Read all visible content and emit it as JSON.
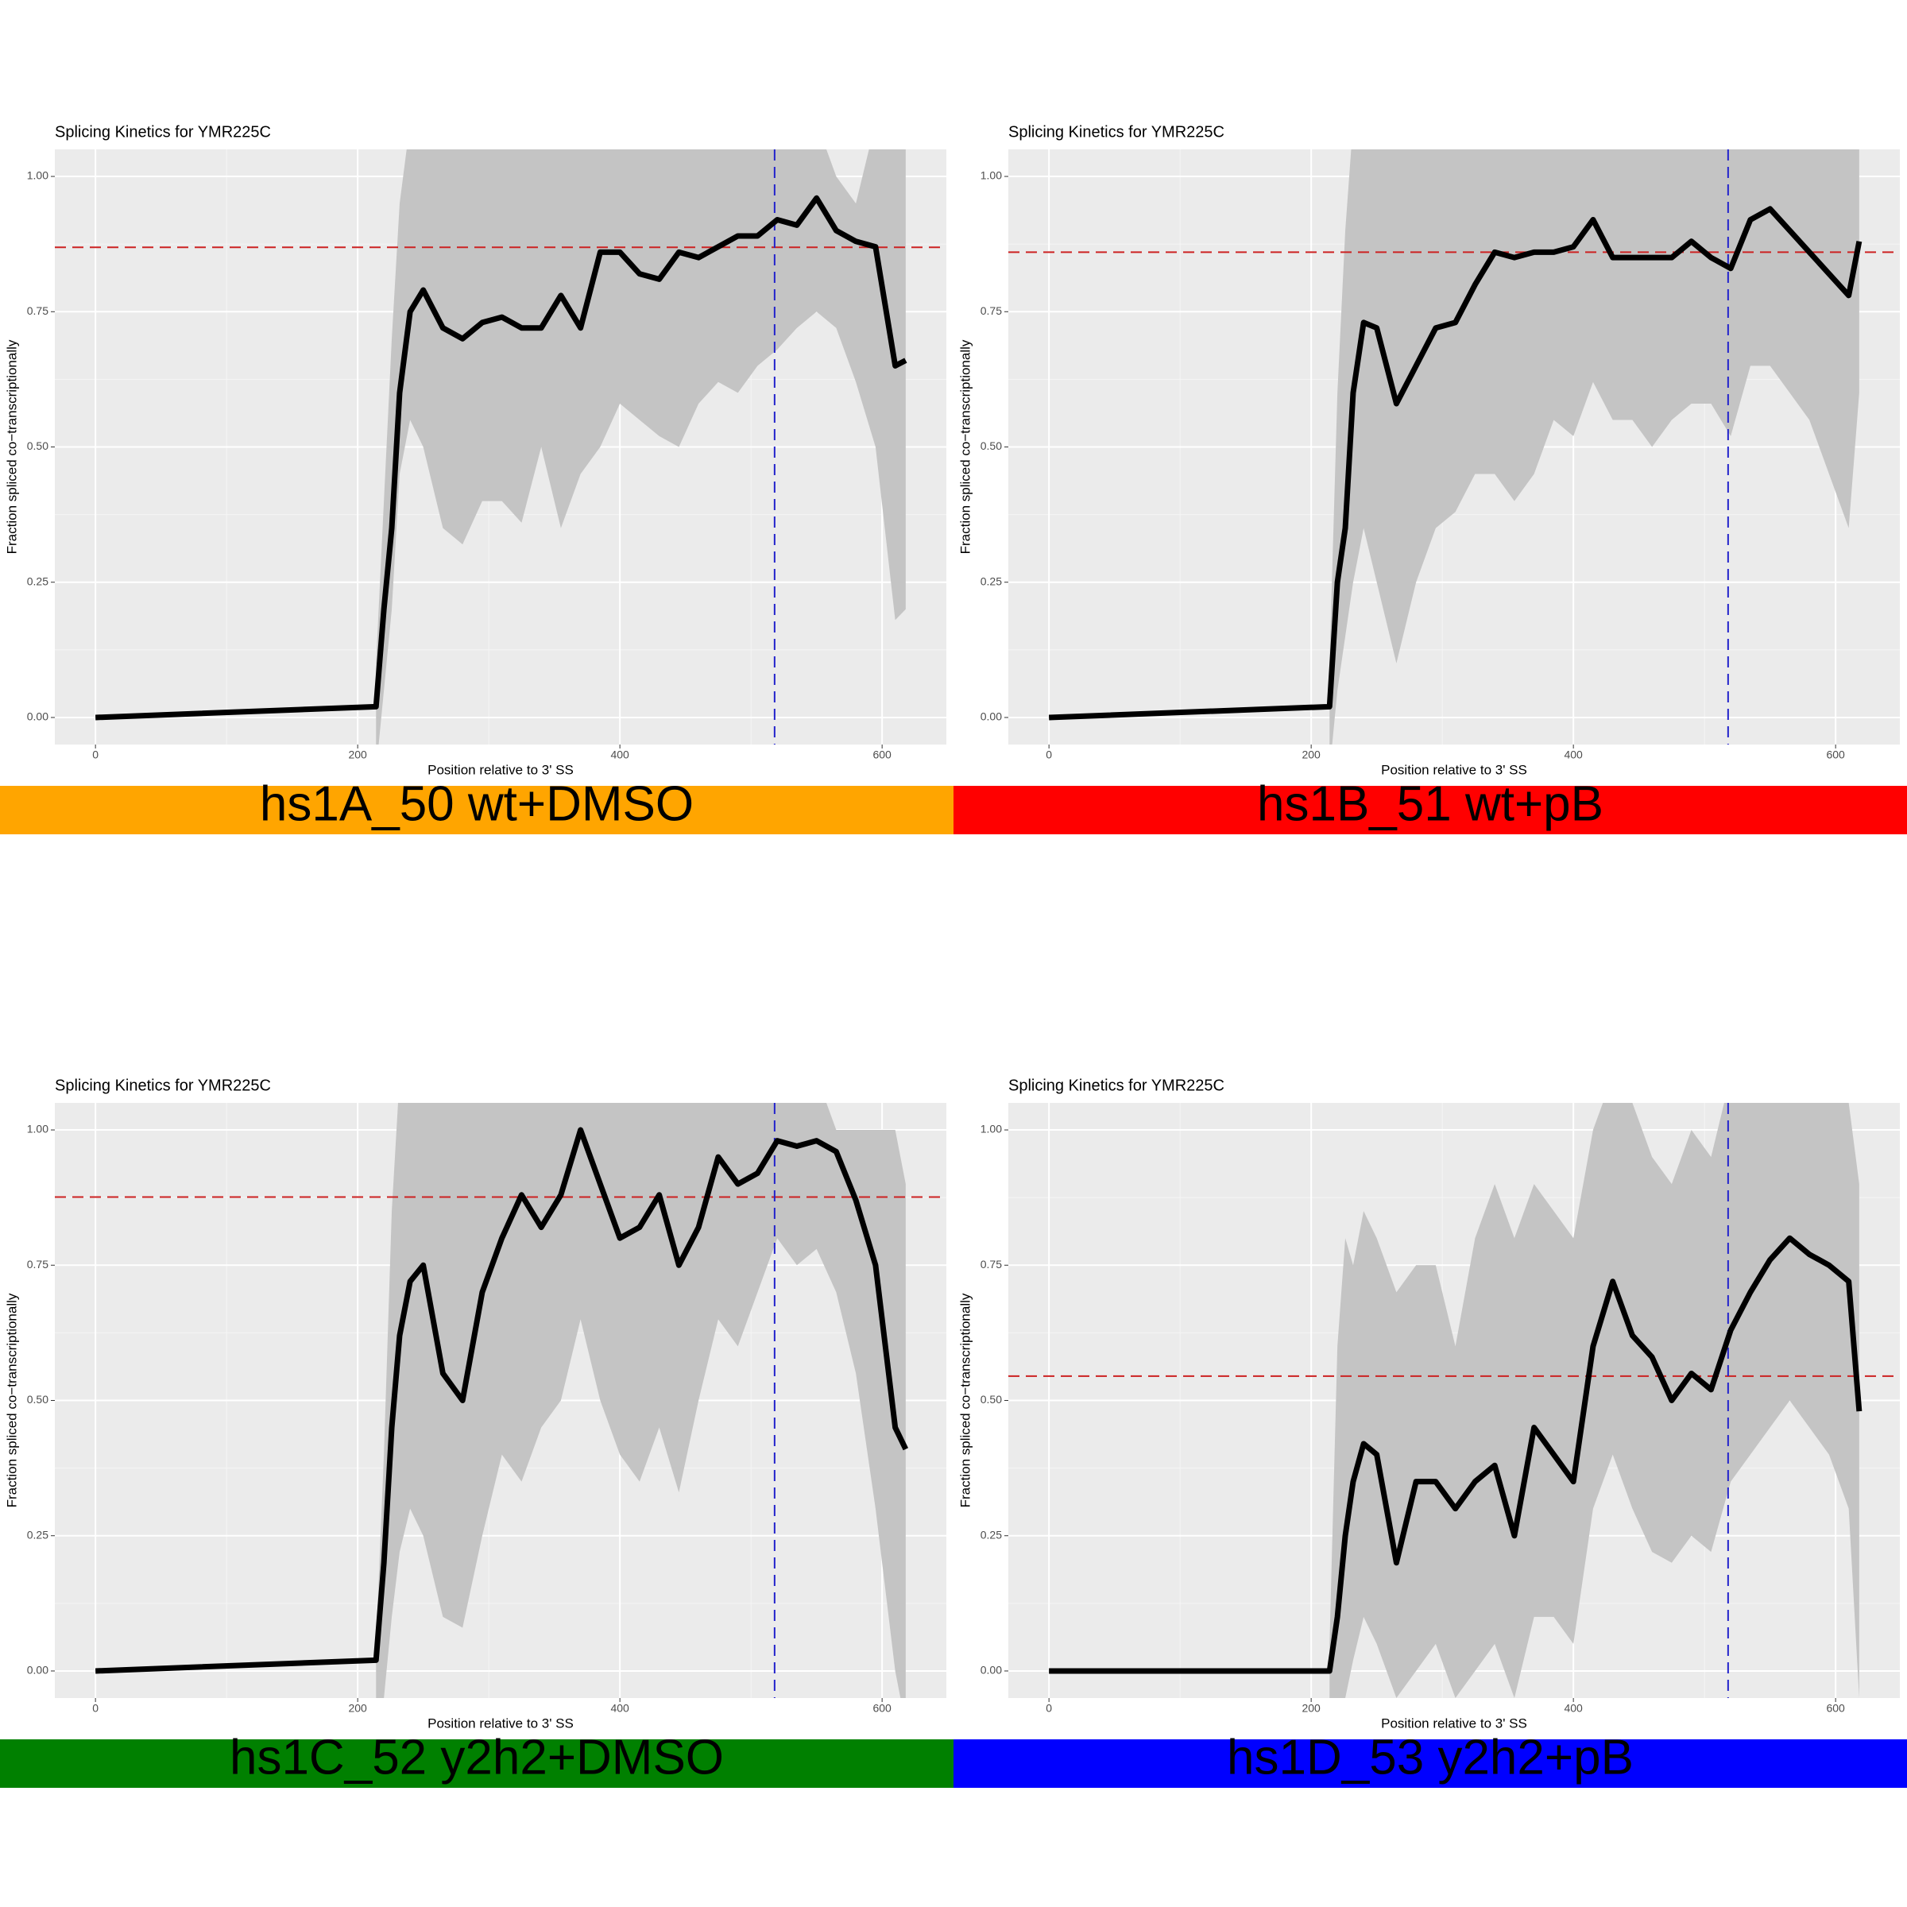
{
  "chart_data": [
    {
      "type": "line",
      "title": "Splicing Kinetics for YMR225C",
      "x_label": "Position relative to 3' SS",
      "y_label": "Fraction spliced co−transcriptionally",
      "caption": "hs1A_50 wt+DMSO",
      "caption_color": "#ffa500",
      "xlim": [
        -31,
        649
      ],
      "ylim": [
        -0.05,
        1.05
      ],
      "xticks": [
        0,
        200,
        400,
        600
      ],
      "yticks": [
        {
          "value": 0,
          "label": "0.00"
        },
        {
          "value": 0.25,
          "label": "0.25"
        },
        {
          "value": 0.5,
          "label": "0.50"
        },
        {
          "value": 0.75,
          "label": "0.75"
        },
        {
          "value": 1,
          "label": "1.00"
        }
      ],
      "grid": true,
      "x": [
        0,
        214,
        220,
        226,
        232,
        240,
        250,
        265,
        280,
        295,
        310,
        325,
        340,
        355,
        370,
        385,
        400,
        415,
        430,
        445,
        460,
        475,
        490,
        505,
        520,
        535,
        550,
        565,
        580,
        595,
        610,
        618
      ],
      "series": [
        {
          "color": "#000000",
          "values": [
            0,
            0.02,
            0.2,
            0.35,
            0.6,
            0.75,
            0.79,
            0.72,
            0.7,
            0.73,
            0.74,
            0.72,
            0.72,
            0.78,
            0.72,
            0.86,
            0.86,
            0.82,
            0.81,
            0.86,
            0.85,
            0.87,
            0.89,
            0.89,
            0.92,
            0.91,
            0.96,
            0.9,
            0.88,
            0.87,
            0.65,
            0.66
          ]
        }
      ],
      "band": {
        "color": "#c4c4c4",
        "lower": [
          null,
          -0.1,
          0.05,
          0.2,
          0.45,
          0.55,
          0.5,
          0.35,
          0.32,
          0.4,
          0.4,
          0.36,
          0.5,
          0.35,
          0.45,
          0.5,
          0.58,
          0.55,
          0.52,
          0.5,
          0.58,
          0.62,
          0.6,
          0.65,
          0.68,
          0.72,
          0.75,
          0.72,
          0.62,
          0.5,
          0.18,
          0.2
        ],
        "upper": [
          null,
          0.1,
          0.4,
          0.7,
          0.95,
          1.1,
          1.1,
          1.1,
          1.1,
          1.1,
          1.1,
          1.1,
          1.1,
          1.1,
          1.1,
          1.1,
          1.1,
          1.1,
          1.1,
          1.1,
          1.1,
          1.1,
          1.1,
          1.1,
          1.1,
          1.1,
          1.1,
          1.0,
          0.95,
          1.1,
          1.1,
          1.1
        ]
      },
      "hline": {
        "value": 0.869,
        "color": "#cc2222"
      },
      "vline": {
        "value": 518,
        "color": "#2222cc"
      }
    },
    {
      "type": "line",
      "title": "Splicing Kinetics for YMR225C",
      "x_label": "Position relative to 3' SS",
      "y_label": "Fraction spliced co−transcriptionally",
      "caption": "hs1B_51 wt+pB",
      "caption_color": "#ff0000",
      "xlim": [
        -31,
        649
      ],
      "ylim": [
        -0.05,
        1.05
      ],
      "xticks": [
        0,
        200,
        400,
        600
      ],
      "yticks": [
        {
          "value": 0,
          "label": "0.00"
        },
        {
          "value": 0.25,
          "label": "0.25"
        },
        {
          "value": 0.5,
          "label": "0.50"
        },
        {
          "value": 0.75,
          "label": "0.75"
        },
        {
          "value": 1,
          "label": "1.00"
        }
      ],
      "grid": true,
      "x": [
        0,
        214,
        220,
        226,
        232,
        240,
        250,
        265,
        280,
        295,
        310,
        325,
        340,
        355,
        370,
        385,
        400,
        415,
        430,
        445,
        460,
        475,
        490,
        505,
        520,
        535,
        550,
        565,
        580,
        595,
        610,
        618
      ],
      "series": [
        {
          "color": "#000000",
          "values": [
            0,
            0.02,
            0.25,
            0.35,
            0.6,
            0.73,
            0.72,
            0.58,
            0.65,
            0.72,
            0.73,
            0.8,
            0.86,
            0.85,
            0.86,
            0.86,
            0.87,
            0.92,
            0.85,
            0.85,
            0.85,
            0.85,
            0.88,
            0.85,
            0.83,
            0.92,
            0.94,
            0.9,
            0.86,
            0.82,
            0.78,
            0.88
          ]
        }
      ],
      "band": {
        "color": "#c4c4c4",
        "lower": [
          null,
          -0.1,
          0.05,
          0.15,
          0.25,
          0.35,
          0.25,
          0.1,
          0.25,
          0.35,
          0.38,
          0.45,
          0.45,
          0.4,
          0.45,
          0.55,
          0.52,
          0.62,
          0.55,
          0.55,
          0.5,
          0.55,
          0.58,
          0.58,
          0.52,
          0.65,
          0.65,
          0.6,
          0.55,
          0.45,
          0.35,
          0.6
        ],
        "upper": [
          null,
          0.1,
          0.6,
          0.9,
          1.1,
          1.1,
          1.1,
          1.1,
          1.1,
          1.1,
          1.1,
          1.1,
          1.1,
          1.1,
          1.1,
          1.1,
          1.1,
          1.1,
          1.1,
          1.1,
          1.1,
          1.1,
          1.1,
          1.1,
          1.1,
          1.1,
          1.1,
          1.1,
          1.1,
          1.1,
          1.1,
          1.1
        ]
      },
      "hline": {
        "value": 0.86,
        "color": "#cc2222"
      },
      "vline": {
        "value": 518,
        "color": "#2222cc"
      }
    },
    {
      "type": "line",
      "title": "Splicing Kinetics for YMR225C",
      "x_label": "Position relative to 3' SS",
      "y_label": "Fraction spliced co−transcriptionally",
      "caption": "hs1C_52 y2h2+DMSO",
      "caption_color": "#008000",
      "xlim": [
        -31,
        649
      ],
      "ylim": [
        -0.05,
        1.05
      ],
      "xticks": [
        0,
        200,
        400,
        600
      ],
      "yticks": [
        {
          "value": 0,
          "label": "0.00"
        },
        {
          "value": 0.25,
          "label": "0.25"
        },
        {
          "value": 0.5,
          "label": "0.50"
        },
        {
          "value": 0.75,
          "label": "0.75"
        },
        {
          "value": 1,
          "label": "1.00"
        }
      ],
      "grid": true,
      "x": [
        0,
        214,
        220,
        226,
        232,
        240,
        250,
        265,
        280,
        295,
        310,
        325,
        340,
        355,
        370,
        385,
        400,
        415,
        430,
        445,
        460,
        475,
        490,
        505,
        520,
        535,
        550,
        565,
        580,
        595,
        610,
        618
      ],
      "series": [
        {
          "color": "#000000",
          "values": [
            0,
            0.02,
            0.2,
            0.45,
            0.62,
            0.72,
            0.75,
            0.55,
            0.5,
            0.7,
            0.8,
            0.88,
            0.82,
            0.88,
            1.0,
            0.9,
            0.8,
            0.82,
            0.88,
            0.75,
            0.82,
            0.95,
            0.9,
            0.92,
            0.98,
            0.97,
            0.98,
            0.96,
            0.87,
            0.75,
            0.45,
            0.41
          ]
        }
      ],
      "band": {
        "color": "#c4c4c4",
        "lower": [
          null,
          -0.1,
          -0.05,
          0.1,
          0.22,
          0.3,
          0.25,
          0.1,
          0.08,
          0.25,
          0.4,
          0.35,
          0.45,
          0.5,
          0.65,
          0.5,
          0.4,
          0.35,
          0.45,
          0.33,
          0.5,
          0.65,
          0.6,
          0.7,
          0.8,
          0.75,
          0.78,
          0.7,
          0.55,
          0.3,
          0.0,
          -0.1
        ],
        "upper": [
          null,
          0.05,
          0.4,
          0.85,
          1.1,
          1.1,
          1.1,
          1.1,
          1.1,
          1.1,
          1.1,
          1.1,
          1.1,
          1.1,
          1.1,
          1.1,
          1.1,
          1.1,
          1.1,
          1.1,
          1.1,
          1.1,
          1.1,
          1.1,
          1.1,
          1.1,
          1.1,
          1.0,
          1.0,
          1.0,
          1.0,
          0.9
        ]
      },
      "hline": {
        "value": 0.876,
        "color": "#cc2222"
      },
      "vline": {
        "value": 518,
        "color": "#2222cc"
      }
    },
    {
      "type": "line",
      "title": "Splicing Kinetics for YMR225C",
      "x_label": "Position relative to 3' SS",
      "y_label": "Fraction spliced co−transcriptionally",
      "caption": "hs1D_53 y2h2+pB",
      "caption_color": "#0000ff",
      "xlim": [
        -31,
        649
      ],
      "ylim": [
        -0.05,
        1.05
      ],
      "xticks": [
        0,
        200,
        400,
        600
      ],
      "yticks": [
        {
          "value": 0,
          "label": "0.00"
        },
        {
          "value": 0.25,
          "label": "0.25"
        },
        {
          "value": 0.5,
          "label": "0.50"
        },
        {
          "value": 0.75,
          "label": "0.75"
        },
        {
          "value": 1,
          "label": "1.00"
        }
      ],
      "grid": true,
      "x": [
        0,
        214,
        220,
        226,
        232,
        240,
        250,
        265,
        280,
        295,
        310,
        325,
        340,
        355,
        370,
        385,
        400,
        415,
        430,
        445,
        460,
        475,
        490,
        505,
        520,
        535,
        550,
        565,
        580,
        595,
        610,
        618
      ],
      "series": [
        {
          "color": "#000000",
          "values": [
            0,
            0,
            0.1,
            0.25,
            0.35,
            0.42,
            0.4,
            0.2,
            0.35,
            0.35,
            0.3,
            0.35,
            0.38,
            0.25,
            0.45,
            0.4,
            0.35,
            0.6,
            0.72,
            0.62,
            0.58,
            0.5,
            0.55,
            0.52,
            0.63,
            0.7,
            0.76,
            0.8,
            0.77,
            0.75,
            0.72,
            0.48
          ]
        }
      ],
      "band": {
        "color": "#c4c4c4",
        "lower": [
          null,
          -0.1,
          -0.1,
          -0.05,
          0.02,
          0.1,
          0.05,
          -0.05,
          0.0,
          0.05,
          -0.05,
          0.0,
          0.05,
          -0.05,
          0.1,
          0.1,
          0.05,
          0.3,
          0.4,
          0.3,
          0.22,
          0.2,
          0.25,
          0.22,
          0.35,
          0.4,
          0.45,
          0.5,
          0.45,
          0.4,
          0.3,
          -0.05
        ],
        "upper": [
          null,
          0.05,
          0.6,
          0.8,
          0.75,
          0.85,
          0.8,
          0.7,
          0.75,
          0.75,
          0.6,
          0.8,
          0.9,
          0.8,
          0.9,
          0.85,
          0.8,
          1.0,
          1.1,
          1.05,
          0.95,
          0.9,
          1.0,
          0.95,
          1.1,
          1.1,
          1.1,
          1.1,
          1.1,
          1.1,
          1.05,
          0.9
        ]
      },
      "hline": {
        "value": 0.545,
        "color": "#cc2222"
      },
      "vline": {
        "value": 518,
        "color": "#2222cc"
      }
    }
  ]
}
